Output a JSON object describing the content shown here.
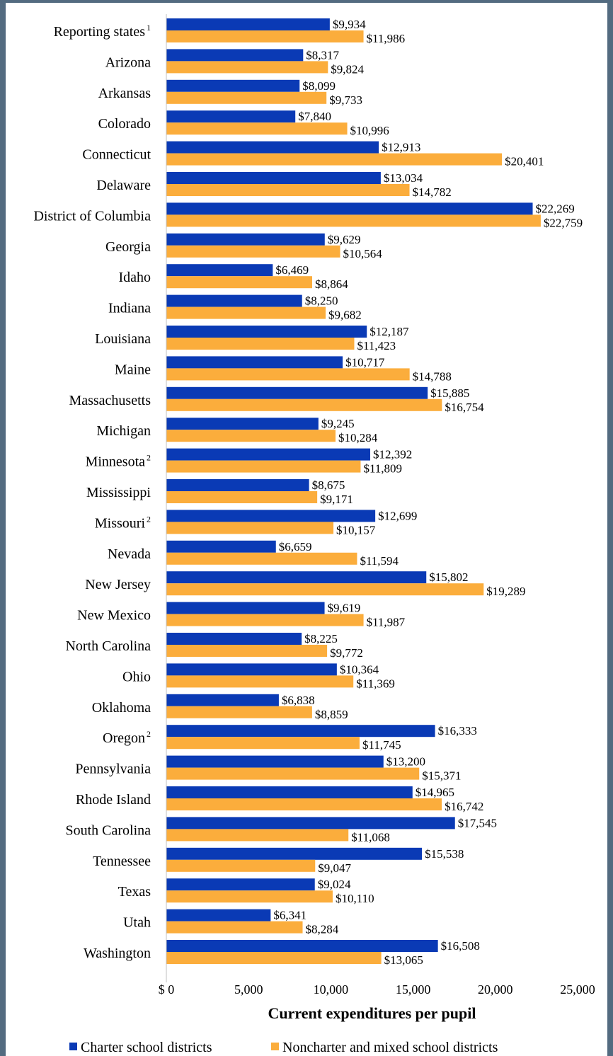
{
  "chart_data": {
    "type": "bar",
    "orientation": "horizontal",
    "categories": [
      "Reporting states",
      "Arizona",
      "Arkansas",
      "Colorado",
      "Connecticut",
      "Delaware",
      "District of Columbia",
      "Georgia",
      "Idaho",
      "Indiana",
      "Louisiana",
      "Maine",
      "Massachusetts",
      "Michigan",
      "Minnesota",
      "Mississippi",
      "Missouri",
      "Nevada",
      "New Jersey",
      "New Mexico",
      "North Carolina",
      "Ohio",
      "Oklahoma",
      "Oregon",
      "Pennsylvania",
      "Rhode Island",
      "South Carolina",
      "Tennessee",
      "Texas",
      "Utah",
      "Washington"
    ],
    "category_footnotes": [
      "1",
      "",
      "",
      "",
      "",
      "",
      "",
      "",
      "",
      "",
      "",
      "",
      "",
      "",
      "2",
      "",
      "2",
      "",
      "",
      "",
      "",
      "",
      "",
      "2",
      "",
      "",
      "",
      "",
      "",
      "",
      ""
    ],
    "series": [
      {
        "name": "Charter school districts",
        "color": "#0a3ab5",
        "values": [
          9934,
          8317,
          8099,
          7840,
          12913,
          13034,
          22269,
          9629,
          6469,
          8250,
          12187,
          10717,
          15885,
          9245,
          12392,
          8675,
          12699,
          6659,
          15802,
          9619,
          8225,
          10364,
          6838,
          16333,
          13200,
          14965,
          17545,
          15538,
          9024,
          6341,
          16508
        ],
        "labels": [
          "$9,934",
          "$8,317",
          "$8,099",
          "$7,840",
          "$12,913",
          "$13,034",
          "$22,269",
          "$9,629",
          "$6,469",
          "$8,250",
          "$12,187",
          "$10,717",
          "$15,885",
          "$9,245",
          "$12,392",
          "$8,675",
          "$12,699",
          "$6,659",
          "$15,802",
          "$9,619",
          "$8,225",
          "$10,364",
          "$6,838",
          "$16,333",
          "$13,200",
          "$14,965",
          "$17,545",
          "$15,538",
          "$9,024",
          "$6,341",
          "$16,508"
        ]
      },
      {
        "name": "Noncharter and mixed school districts",
        "color": "#fbad3c",
        "values": [
          11986,
          9824,
          9733,
          10996,
          20401,
          14782,
          22759,
          10564,
          8864,
          9682,
          11423,
          14788,
          16754,
          10284,
          11809,
          9171,
          10157,
          11594,
          19289,
          11987,
          9772,
          11369,
          8859,
          11745,
          15371,
          16742,
          11068,
          9047,
          10110,
          8284,
          13065
        ],
        "labels": [
          "$11,986",
          "$9,824",
          "$9,733",
          "$10,996",
          "$20,401",
          "$14,782",
          "$22,759",
          "$10,564",
          "$8,864",
          "$9,682",
          "$11,423",
          "$14,788",
          "$16,754",
          "$10,284",
          "$11,809",
          "$9,171",
          "$10,157",
          "$11,594",
          "$19,289",
          "$11,987",
          "$9,772",
          "$11,369",
          "$8,859",
          "$11,745",
          "$15,371",
          "$16,742",
          "$11,068",
          "$9,047",
          "$10,110",
          "$8,284",
          "$13,065"
        ]
      }
    ],
    "xlabel": "Current expenditures per pupil",
    "xlim": [
      0,
      25000
    ],
    "xticks": [
      0,
      5000,
      10000,
      15000,
      20000,
      25000
    ],
    "xtick_labels": [
      "$ 0",
      "5,000",
      "10,000",
      "15,000",
      "20,000",
      "25,000"
    ],
    "grid": false,
    "legend_position": "bottom"
  }
}
